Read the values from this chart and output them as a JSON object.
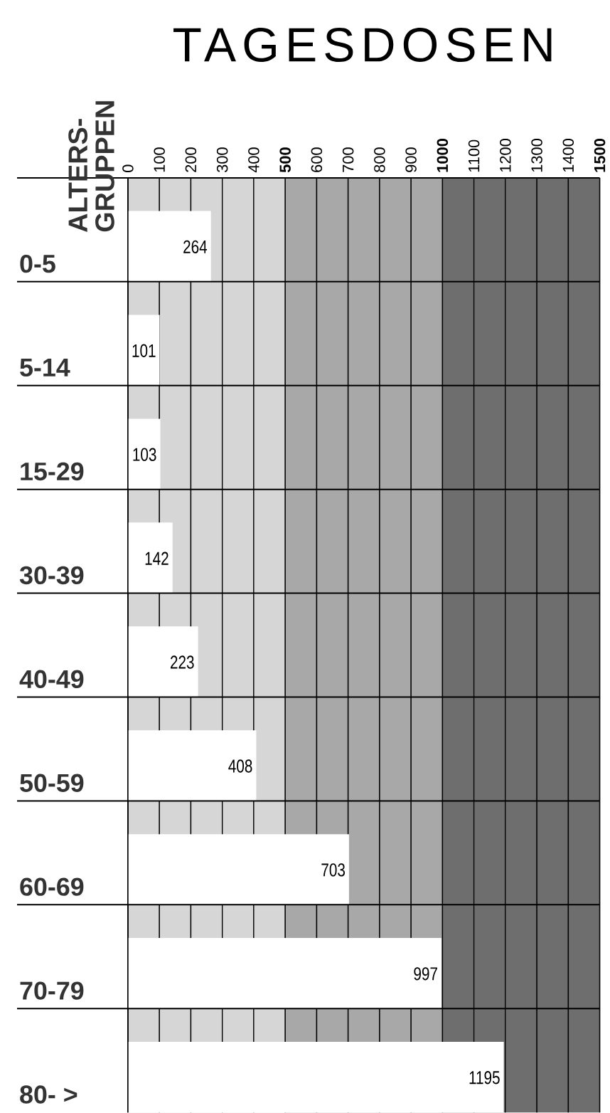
{
  "chart_data": {
    "type": "bar",
    "orientation": "horizontal",
    "title": "TAGESDOSEN",
    "ylabel": "ALTERS-GRUPPEN",
    "categories": [
      "0-5",
      "5-14",
      "15-29",
      "30-39",
      "40-49",
      "50-59",
      "60-69",
      "70-79",
      "80- >"
    ],
    "values": [
      264,
      101,
      103,
      142,
      223,
      408,
      703,
      997,
      1195
    ],
    "color": "#ffffff",
    "data_labels": true,
    "xlim": [
      0,
      1500
    ],
    "xticks": [
      0,
      100,
      200,
      300,
      400,
      500,
      600,
      700,
      800,
      900,
      1000,
      1100,
      1200,
      1300,
      1400,
      1500
    ],
    "grid": "x",
    "bands": [
      {
        "axis": "x",
        "from": 0,
        "to": 500,
        "color": "#d6d6d6"
      },
      {
        "axis": "x",
        "from": 500,
        "to": 1000,
        "color": "#a8a8a8"
      },
      {
        "axis": "x",
        "from": 1000,
        "to": 1500,
        "color": "#6e6e6e"
      }
    ]
  }
}
